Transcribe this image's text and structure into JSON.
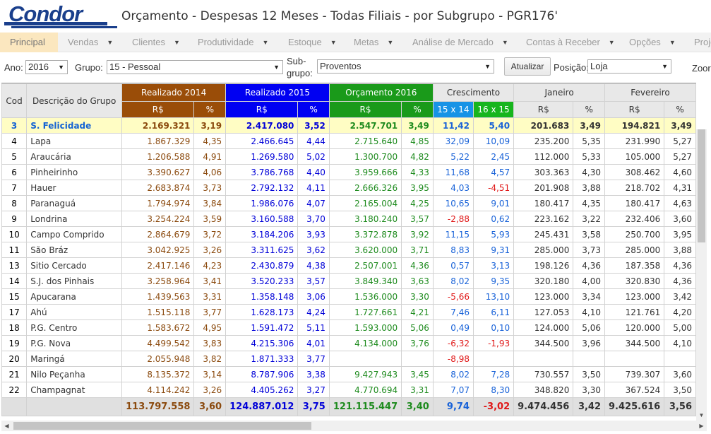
{
  "header": {
    "logo_text": "Condor",
    "title": "Orçamento - Despesas 12 Meses - Todas Filiais - por Subgrupo - PGR176'"
  },
  "menu": [
    {
      "label": "Principal",
      "caret": false,
      "active": true
    },
    {
      "label": "Vendas",
      "caret": true
    },
    {
      "label": "Clientes",
      "caret": true
    },
    {
      "label": "Produtividade",
      "caret": true
    },
    {
      "label": "Estoque",
      "caret": true
    },
    {
      "label": "Metas",
      "caret": true
    },
    {
      "label": "Análise de Mercado",
      "caret": true
    },
    {
      "label": "Contas à Receber",
      "caret": true
    },
    {
      "label": "Opções",
      "caret": true
    },
    {
      "label": "Proje",
      "caret": false
    }
  ],
  "filters": {
    "ano_label": "Ano:",
    "ano_value": "2016",
    "grupo_label": "Grupo:",
    "grupo_value": "15 - Pessoal",
    "subgrupo_label_1": "Sub-",
    "subgrupo_label_2": "grupo:",
    "subgrupo_value": "Proventos",
    "update_button": "Atualizar",
    "posicao_label": "Posição:",
    "posicao_value": "Loja",
    "zoom_label": "Zoor"
  },
  "table": {
    "headers": {
      "cod": "Cod",
      "descricao": "Descrição do Grupo",
      "realizado_2014": "Realizado 2014",
      "realizado_2015": "Realizado 2015",
      "orcamento_2016": "Orçamento 2016",
      "crescimento": "Crescimento",
      "janeiro": "Janeiro",
      "fevereiro": "Fevereiro",
      "rs": "R$",
      "pct": "%",
      "cres_15x14": "15 x 14",
      "cres_16x15": "16 x 15"
    },
    "rows": [
      {
        "cod": "3",
        "desc": "S. Felicidade",
        "r14": "2.169.321",
        "p14": "3,19",
        "r15": "2.417.080",
        "p15": "3,52",
        "o16": "2.547.701",
        "po16": "3,49",
        "c1514": "11,42",
        "c1615": "5,40",
        "jan": "201.683",
        "pjan": "3,49",
        "fev": "194.821",
        "pfev": "3,49",
        "highlight": true
      },
      {
        "cod": "4",
        "desc": "Lapa",
        "r14": "1.867.329",
        "p14": "4,35",
        "r15": "2.466.645",
        "p15": "4,44",
        "o16": "2.715.640",
        "po16": "4,85",
        "c1514": "32,09",
        "c1615": "10,09",
        "jan": "235.200",
        "pjan": "5,35",
        "fev": "231.990",
        "pfev": "5,27"
      },
      {
        "cod": "5",
        "desc": "Araucária",
        "r14": "1.206.588",
        "p14": "4,91",
        "r15": "1.269.580",
        "p15": "5,02",
        "o16": "1.300.700",
        "po16": "4,82",
        "c1514": "5,22",
        "c1615": "2,45",
        "jan": "112.000",
        "pjan": "5,33",
        "fev": "105.000",
        "pfev": "5,27"
      },
      {
        "cod": "6",
        "desc": "Pinheirinho",
        "r14": "3.390.627",
        "p14": "4,06",
        "r15": "3.786.768",
        "p15": "4,40",
        "o16": "3.959.666",
        "po16": "4,33",
        "c1514": "11,68",
        "c1615": "4,57",
        "jan": "303.363",
        "pjan": "4,30",
        "fev": "308.462",
        "pfev": "4,60"
      },
      {
        "cod": "7",
        "desc": "Hauer",
        "r14": "2.683.874",
        "p14": "3,73",
        "r15": "2.792.132",
        "p15": "4,11",
        "o16": "2.666.326",
        "po16": "3,95",
        "c1514": "4,03",
        "c1615": "-4,51",
        "jan": "201.908",
        "pjan": "3,88",
        "fev": "218.702",
        "pfev": "4,31"
      },
      {
        "cod": "8",
        "desc": "Paranaguá",
        "r14": "1.794.974",
        "p14": "3,84",
        "r15": "1.986.076",
        "p15": "4,07",
        "o16": "2.165.004",
        "po16": "4,25",
        "c1514": "10,65",
        "c1615": "9,01",
        "jan": "180.417",
        "pjan": "4,35",
        "fev": "180.417",
        "pfev": "4,63"
      },
      {
        "cod": "9",
        "desc": "Londrina",
        "r14": "3.254.224",
        "p14": "3,59",
        "r15": "3.160.588",
        "p15": "3,70",
        "o16": "3.180.240",
        "po16": "3,57",
        "c1514": "-2,88",
        "c1615": "0,62",
        "jan": "223.162",
        "pjan": "3,22",
        "fev": "232.406",
        "pfev": "3,60"
      },
      {
        "cod": "10",
        "desc": "Campo Comprido",
        "r14": "2.864.679",
        "p14": "3,72",
        "r15": "3.184.206",
        "p15": "3,93",
        "o16": "3.372.878",
        "po16": "3,92",
        "c1514": "11,15",
        "c1615": "5,93",
        "jan": "245.431",
        "pjan": "3,58",
        "fev": "250.700",
        "pfev": "3,95"
      },
      {
        "cod": "11",
        "desc": "São Bráz",
        "r14": "3.042.925",
        "p14": "3,26",
        "r15": "3.311.625",
        "p15": "3,62",
        "o16": "3.620.000",
        "po16": "3,71",
        "c1514": "8,83",
        "c1615": "9,31",
        "jan": "285.000",
        "pjan": "3,73",
        "fev": "285.000",
        "pfev": "3,88"
      },
      {
        "cod": "13",
        "desc": "Sitio Cercado",
        "r14": "2.417.146",
        "p14": "4,23",
        "r15": "2.430.879",
        "p15": "4,38",
        "o16": "2.507.001",
        "po16": "4,36",
        "c1514": "0,57",
        "c1615": "3,13",
        "jan": "198.126",
        "pjan": "4,36",
        "fev": "187.358",
        "pfev": "4,36"
      },
      {
        "cod": "14",
        "desc": "S.J. dos Pinhais",
        "r14": "3.258.964",
        "p14": "3,41",
        "r15": "3.520.233",
        "p15": "3,57",
        "o16": "3.849.340",
        "po16": "3,63",
        "c1514": "8,02",
        "c1615": "9,35",
        "jan": "320.180",
        "pjan": "4,00",
        "fev": "320.830",
        "pfev": "4,36"
      },
      {
        "cod": "15",
        "desc": "Apucarana",
        "r14": "1.439.563",
        "p14": "3,31",
        "r15": "1.358.148",
        "p15": "3,06",
        "o16": "1.536.000",
        "po16": "3,30",
        "c1514": "-5,66",
        "c1615": "13,10",
        "jan": "123.000",
        "pjan": "3,34",
        "fev": "123.000",
        "pfev": "3,42"
      },
      {
        "cod": "17",
        "desc": "Ahú",
        "r14": "1.515.118",
        "p14": "3,77",
        "r15": "1.628.173",
        "p15": "4,24",
        "o16": "1.727.661",
        "po16": "4,21",
        "c1514": "7,46",
        "c1615": "6,11",
        "jan": "127.053",
        "pjan": "4,10",
        "fev": "121.761",
        "pfev": "4,20"
      },
      {
        "cod": "18",
        "desc": "P.G. Centro",
        "r14": "1.583.672",
        "p14": "4,95",
        "r15": "1.591.472",
        "p15": "5,11",
        "o16": "1.593.000",
        "po16": "5,06",
        "c1514": "0,49",
        "c1615": "0,10",
        "jan": "124.000",
        "pjan": "5,06",
        "fev": "120.000",
        "pfev": "5,00"
      },
      {
        "cod": "19",
        "desc": "P.G. Nova",
        "r14": "4.499.542",
        "p14": "3,83",
        "r15": "4.215.306",
        "p15": "4,01",
        "o16": "4.134.000",
        "po16": "3,76",
        "c1514": "-6,32",
        "c1615": "-1,93",
        "jan": "344.500",
        "pjan": "3,96",
        "fev": "344.500",
        "pfev": "4,10"
      },
      {
        "cod": "20",
        "desc": "Maringá",
        "r14": "2.055.948",
        "p14": "3,82",
        "r15": "1.871.333",
        "p15": "3,77",
        "o16": "",
        "po16": "",
        "c1514": "-8,98",
        "c1615": "",
        "jan": "",
        "pjan": "",
        "fev": "",
        "pfev": ""
      },
      {
        "cod": "21",
        "desc": "Nilo Peçanha",
        "r14": "8.135.372",
        "p14": "3,14",
        "r15": "8.787.906",
        "p15": "3,38",
        "o16": "9.427.943",
        "po16": "3,45",
        "c1514": "8,02",
        "c1615": "7,28",
        "jan": "730.557",
        "pjan": "3,50",
        "fev": "739.307",
        "pfev": "3,60"
      },
      {
        "cod": "22",
        "desc": "Champagnat",
        "r14": "4.114.242",
        "p14": "3,26",
        "r15": "4.405.262",
        "p15": "3,27",
        "o16": "4.770.694",
        "po16": "3,31",
        "c1514": "7,07",
        "c1615": "8,30",
        "jan": "348.820",
        "pjan": "3,30",
        "fev": "367.524",
        "pfev": "3,50"
      }
    ],
    "total": {
      "r14": "113.797.558",
      "p14": "3,60",
      "r15": "124.887.012",
      "p15": "3,75",
      "o16": "121.115.447",
      "po16": "3,40",
      "c1514": "9,74",
      "c1615": "-3,02",
      "jan": "9.474.456",
      "pjan": "3,42",
      "fev": "9.425.616",
      "pfev": "3,56"
    }
  },
  "colors": {
    "realizado_2014": "#9a4d08",
    "realizado_2015": "#0000f2",
    "orcamento_2016": "#1a9a1a",
    "negative": "#e01818",
    "highlight_row": "#fffdc4"
  }
}
